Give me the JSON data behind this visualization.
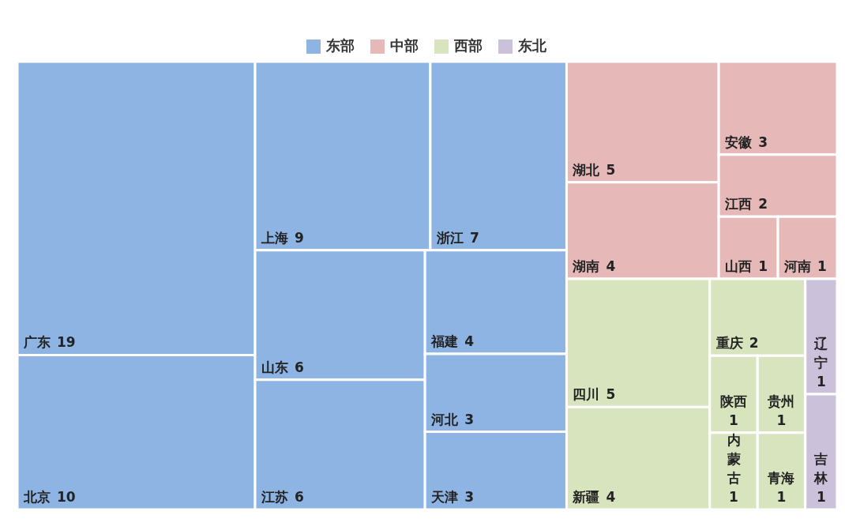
{
  "chart_data": {
    "type": "other",
    "legend": "top",
    "categories": [
      "广东",
      "北京",
      "上海",
      "浙江",
      "山东",
      "江苏",
      "福建",
      "河北",
      "天津",
      "湖北",
      "湖南",
      "安徽",
      "江西",
      "山西",
      "河南",
      "四川",
      "新疆",
      "重庆",
      "陕西",
      "贵州",
      "内蒙古",
      "青海",
      "辽宁",
      "吉林"
    ],
    "series": [
      {
        "name": "东部",
        "color": "#8eb4e3",
        "values": [
          19,
          10,
          9,
          7,
          6,
          6,
          4,
          3,
          3,
          null,
          null,
          null,
          null,
          null,
          null,
          null,
          null,
          null,
          null,
          null,
          null,
          null,
          null,
          null
        ],
        "value_labels": [
          "19",
          "10",
          "9",
          "7",
          "6",
          "6",
          "4",
          "3",
          "3",
          null,
          null,
          null,
          null,
          null,
          null,
          null,
          null,
          null,
          null,
          null,
          null,
          null,
          null,
          null
        ]
      },
      {
        "name": "中部",
        "color": "#e6b9b8",
        "values": [
          null,
          null,
          null,
          null,
          null,
          null,
          null,
          null,
          null,
          5,
          4,
          3,
          2,
          1,
          1,
          null,
          null,
          null,
          null,
          null,
          null,
          null,
          null,
          null
        ],
        "value_labels": [
          null,
          null,
          null,
          null,
          null,
          null,
          null,
          null,
          null,
          "5",
          "4",
          "3",
          "2",
          "1",
          "1",
          null,
          null,
          null,
          null,
          null,
          null,
          null,
          null,
          null
        ]
      },
      {
        "name": "西部",
        "color": "#d7e4bd",
        "values": [
          null,
          null,
          null,
          null,
          null,
          null,
          null,
          null,
          null,
          null,
          null,
          null,
          null,
          null,
          null,
          5,
          4,
          2,
          1,
          1,
          1,
          1,
          null,
          null
        ],
        "value_labels": [
          null,
          null,
          null,
          null,
          null,
          null,
          null,
          null,
          null,
          null,
          null,
          null,
          null,
          null,
          null,
          "5",
          "4",
          "2",
          "1",
          "1",
          "1",
          "1",
          null,
          null
        ]
      },
      {
        "name": "东北",
        "color": "#ccc1da",
        "values": [
          null,
          null,
          null,
          null,
          null,
          null,
          null,
          null,
          null,
          null,
          null,
          null,
          null,
          null,
          null,
          null,
          null,
          null,
          null,
          null,
          null,
          null,
          1,
          1
        ],
        "value_labels": [
          null,
          null,
          null,
          null,
          null,
          null,
          null,
          null,
          null,
          null,
          null,
          null,
          null,
          null,
          null,
          null,
          null,
          null,
          null,
          null,
          null,
          null,
          "1",
          "1"
        ]
      }
    ]
  }
}
